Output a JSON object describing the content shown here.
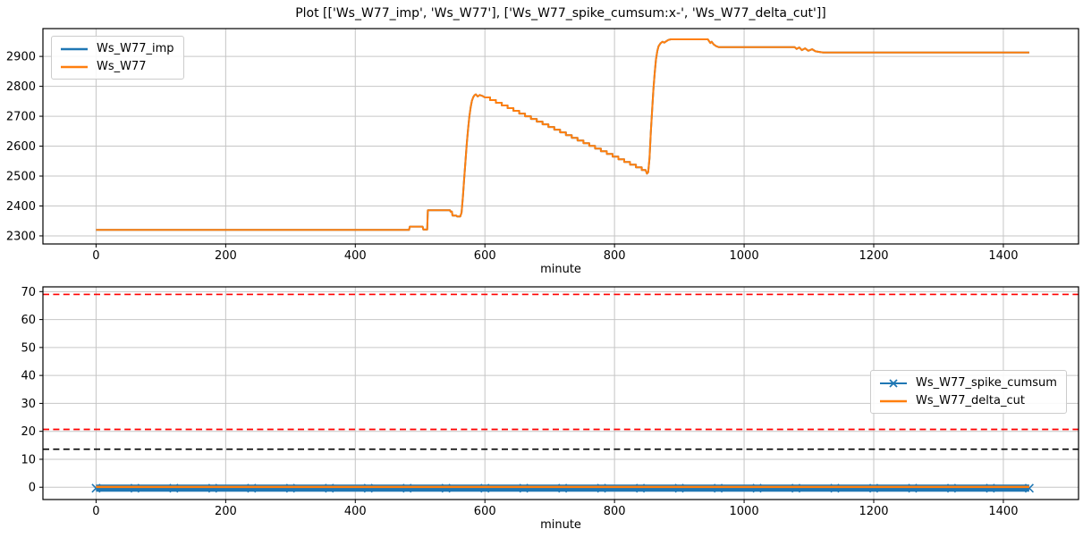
{
  "title": "Plot [['Ws_W77_imp', 'Ws_W77'], ['Ws_W77_spike_cumsum:x-', 'Ws_W77_delta_cut']]",
  "colors": {
    "series_blue": "#1f77b4",
    "series_orange": "#ff7f0e",
    "threshold_red": "#ff0000",
    "threshold_black": "#000000",
    "grid": "#c6c6c6",
    "spine": "#000000",
    "background": "#ffffff"
  },
  "chart_data": [
    {
      "type": "line",
      "xlabel": "minute",
      "xlim": [
        -82,
        1516
      ],
      "ylim": [
        2273,
        2993
      ],
      "xticks": [
        0,
        200,
        400,
        600,
        800,
        1000,
        1200,
        1400
      ],
      "yticks": [
        2300,
        2400,
        2500,
        2600,
        2700,
        2800,
        2900
      ],
      "grid": true,
      "legend_position": "upper-left",
      "series": [
        {
          "name": "Ws_W77_imp",
          "color": "#1f77b4",
          "width": 2,
          "points": "same_as:1"
        },
        {
          "name": "Ws_W77",
          "color": "#ff7f0e",
          "width": 2,
          "points": [
            [
              0,
              2320
            ],
            [
              483,
              2320
            ],
            [
              484,
              2331
            ],
            [
              504,
              2331
            ],
            [
              505,
              2321
            ],
            [
              511,
              2321
            ],
            [
              512,
              2386
            ],
            [
              546,
              2386
            ],
            [
              547,
              2381
            ],
            [
              549,
              2381
            ],
            [
              550,
              2368
            ],
            [
              556,
              2368
            ],
            [
              557,
              2365
            ],
            [
              562,
              2365
            ],
            [
              564,
              2378
            ],
            [
              566,
              2430
            ],
            [
              568,
              2490
            ],
            [
              570,
              2550
            ],
            [
              572,
              2607
            ],
            [
              574,
              2657
            ],
            [
              576,
              2698
            ],
            [
              578,
              2730
            ],
            [
              580,
              2752
            ],
            [
              582,
              2764
            ],
            [
              584,
              2770
            ],
            [
              586,
              2773
            ],
            [
              589,
              2766
            ],
            [
              592,
              2771
            ],
            [
              596,
              2768
            ],
            [
              600,
              2763
            ],
            [
              608,
              2763
            ],
            [
              608,
              2754
            ],
            [
              617,
              2754
            ],
            [
              617,
              2745
            ],
            [
              626,
              2745
            ],
            [
              626,
              2736
            ],
            [
              635,
              2736
            ],
            [
              635,
              2727
            ],
            [
              644,
              2727
            ],
            [
              644,
              2718
            ],
            [
              653,
              2718
            ],
            [
              653,
              2709
            ],
            [
              662,
              2709
            ],
            [
              662,
              2700
            ],
            [
              671,
              2700
            ],
            [
              671,
              2691
            ],
            [
              680,
              2691
            ],
            [
              680,
              2682
            ],
            [
              689,
              2682
            ],
            [
              689,
              2673
            ],
            [
              698,
              2673
            ],
            [
              698,
              2664
            ],
            [
              707,
              2664
            ],
            [
              707,
              2655
            ],
            [
              716,
              2655
            ],
            [
              716,
              2646
            ],
            [
              725,
              2646
            ],
            [
              725,
              2637
            ],
            [
              734,
              2637
            ],
            [
              734,
              2628
            ],
            [
              743,
              2628
            ],
            [
              743,
              2619
            ],
            [
              752,
              2619
            ],
            [
              752,
              2610
            ],
            [
              761,
              2610
            ],
            [
              761,
              2601
            ],
            [
              770,
              2601
            ],
            [
              770,
              2592
            ],
            [
              779,
              2592
            ],
            [
              779,
              2583
            ],
            [
              788,
              2583
            ],
            [
              788,
              2574
            ],
            [
              797,
              2574
            ],
            [
              797,
              2565
            ],
            [
              806,
              2565
            ],
            [
              806,
              2556
            ],
            [
              815,
              2556
            ],
            [
              815,
              2547
            ],
            [
              824,
              2547
            ],
            [
              824,
              2538
            ],
            [
              833,
              2538
            ],
            [
              833,
              2529
            ],
            [
              842,
              2529
            ],
            [
              842,
              2520
            ],
            [
              848,
              2520
            ],
            [
              850,
              2508
            ],
            [
              852,
              2513
            ],
            [
              854,
              2560
            ],
            [
              856,
              2645
            ],
            [
              858,
              2720
            ],
            [
              860,
              2788
            ],
            [
              862,
              2845
            ],
            [
              864,
              2890
            ],
            [
              866,
              2918
            ],
            [
              868,
              2934
            ],
            [
              871,
              2944
            ],
            [
              874,
              2949
            ],
            [
              877,
              2946
            ],
            [
              880,
              2951
            ],
            [
              883,
              2955
            ],
            [
              887,
              2957
            ],
            [
              944,
              2957
            ],
            [
              946,
              2951
            ],
            [
              948,
              2945
            ],
            [
              950,
              2949
            ],
            [
              953,
              2940
            ],
            [
              957,
              2934
            ],
            [
              961,
              2931
            ],
            [
              1078,
              2931
            ],
            [
              1081,
              2925
            ],
            [
              1085,
              2930
            ],
            [
              1089,
              2921
            ],
            [
              1094,
              2927
            ],
            [
              1099,
              2919
            ],
            [
              1105,
              2924
            ],
            [
              1110,
              2917
            ],
            [
              1116,
              2915
            ],
            [
              1122,
              2913
            ],
            [
              1440,
              2913
            ]
          ]
        }
      ]
    },
    {
      "type": "line",
      "xlabel": "minute",
      "xlim": [
        -82,
        1516
      ],
      "ylim": [
        -4.4,
        71.7
      ],
      "xticks": [
        0,
        200,
        400,
        600,
        800,
        1000,
        1200,
        1400
      ],
      "yticks": [
        0,
        10,
        20,
        30,
        40,
        50,
        60,
        70
      ],
      "grid": true,
      "legend_position": "center-right",
      "series": [
        {
          "name": "Ws_W77_spike_cumsum",
          "color": "#1f77b4",
          "width": 8,
          "marker": "x",
          "marker_count": 25,
          "points": [
            [
              0,
              -0.35
            ],
            [
              1440,
              -0.35
            ]
          ]
        },
        {
          "name": "Ws_W77_delta_cut",
          "color": "#ff7f0e",
          "width": 2.5,
          "points": [
            [
              0,
              0.1
            ],
            [
              1440,
              0.1
            ]
          ]
        }
      ],
      "hlines": [
        {
          "y": 69.0,
          "color": "#ff0000",
          "style": "dashed"
        },
        {
          "y": 20.7,
          "color": "#ff0000",
          "style": "dashed"
        },
        {
          "y": 13.6,
          "color": "#000000",
          "style": "dashed"
        }
      ]
    }
  ]
}
